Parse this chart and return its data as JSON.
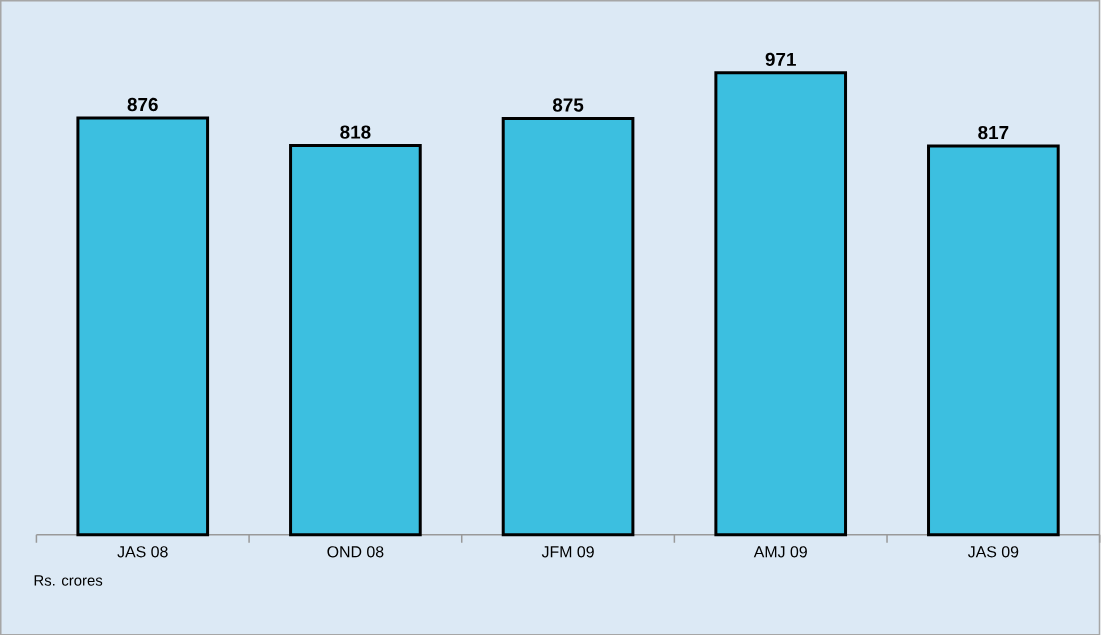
{
  "chart_data": {
    "type": "bar",
    "categories": [
      "JAS 08",
      "OND 08",
      "JFM 09",
      "AMJ 09",
      "JAS 09"
    ],
    "values": [
      876,
      818,
      875,
      971,
      817
    ],
    "color": "#3cbfe0",
    "data_labels": true,
    "annotations": [
      "Rs. crores"
    ]
  }
}
